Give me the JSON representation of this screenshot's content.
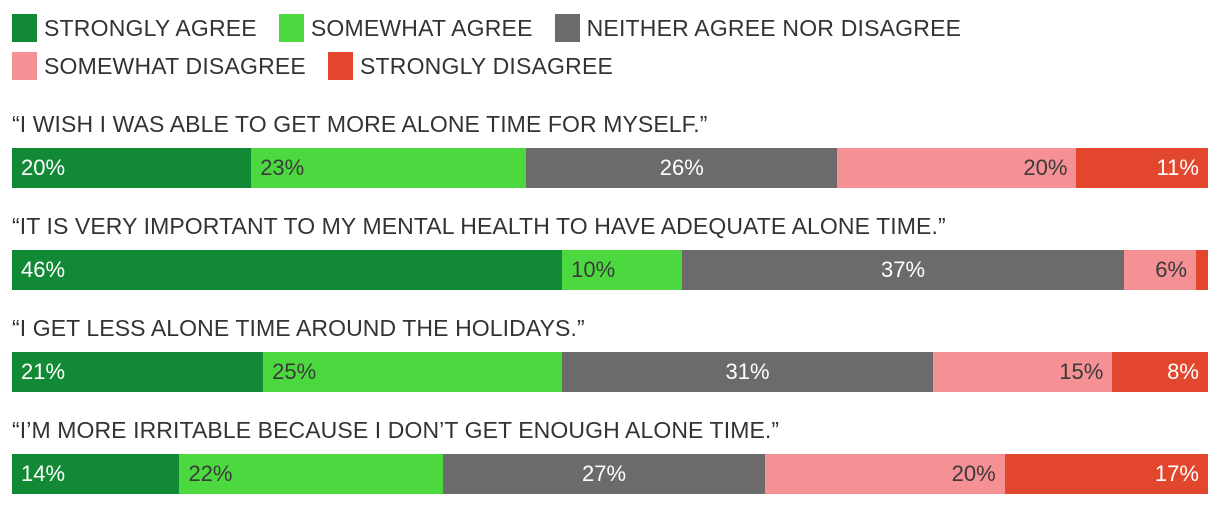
{
  "colors": {
    "strongly_agree": "#128a35",
    "somewhat_agree": "#4cd940",
    "neither": "#6b6b6b",
    "somewhat_disagree": "#f59095",
    "strongly_disagree": "#e2472e"
  },
  "chart_data": {
    "type": "bar",
    "orientation": "horizontal",
    "stacked": true,
    "legend_position": "top",
    "series": [
      {
        "name": "STRONGLY AGREE",
        "color": "#128a35"
      },
      {
        "name": "SOMEWHAT AGREE",
        "color": "#4cd940"
      },
      {
        "name": "NEITHER AGREE NOR DISAGREE",
        "color": "#6b6b6b"
      },
      {
        "name": "SOMEWHAT DISAGREE",
        "color": "#f59095"
      },
      {
        "name": "STRONGLY DISAGREE",
        "color": "#e2472e"
      }
    ],
    "rows": [
      {
        "question": "“I WISH I WAS ABLE TO GET MORE ALONE TIME FOR MYSELF.”",
        "values": [
          20,
          23,
          26,
          20,
          11
        ],
        "labels": [
          "20%",
          "23%",
          "26%",
          "20%",
          "11%"
        ]
      },
      {
        "question": "“IT IS VERY IMPORTANT TO MY MENTAL HEALTH TO HAVE ADEQUATE ALONE TIME.”",
        "values": [
          46,
          10,
          37,
          6,
          1
        ],
        "labels": [
          "46%",
          "10%",
          "37%",
          "6%",
          ""
        ]
      },
      {
        "question": "“I GET LESS ALONE TIME AROUND THE HOLIDAYS.”",
        "values": [
          21,
          25,
          31,
          15,
          8
        ],
        "labels": [
          "21%",
          "25%",
          "31%",
          "15%",
          "8%"
        ]
      },
      {
        "question": "“I’M MORE IRRITABLE BECAUSE I DON’T GET ENOUGH ALONE TIME.”",
        "values": [
          14,
          22,
          27,
          20,
          17
        ],
        "labels": [
          "14%",
          "22%",
          "27%",
          "20%",
          "17%"
        ]
      }
    ]
  }
}
